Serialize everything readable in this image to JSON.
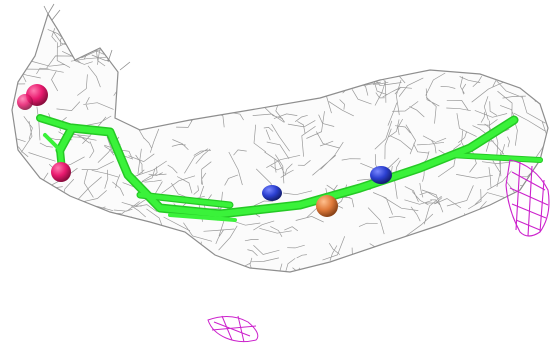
{
  "colors": {
    "background": "#ffffff",
    "density_mesh": "#8e8e8e",
    "density_mesh_light": "#b4b4b4",
    "ligand_carbon": "#3af23a",
    "ligand_carbon_shade": "#25c925",
    "oxygen": "#e8196e",
    "oxygen_dark": "#b0124f",
    "nitrogen": "#2b3fd0",
    "sulfur": "#e07a3a",
    "difference_mesh": "#cc22cc"
  },
  "elements": {
    "mesh": "electron-density-mesh",
    "ligand": "ligand-stick-model",
    "atoms": [
      "oxygen-atom",
      "oxygen-atom",
      "oxygen-atom",
      "nitrogen-atom",
      "sulfur-atom",
      "nitrogen-atom"
    ],
    "difference": [
      "difference-density-mesh-right",
      "difference-density-mesh-bottom"
    ]
  }
}
